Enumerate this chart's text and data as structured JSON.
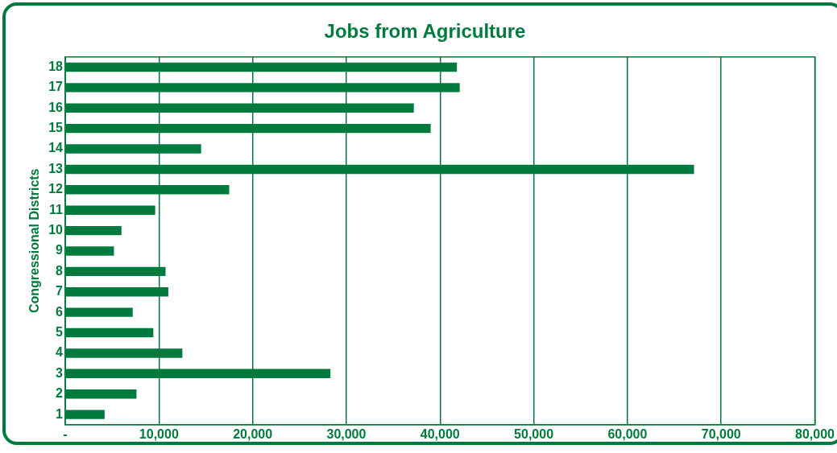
{
  "chart_data": {
    "type": "bar",
    "orientation": "horizontal",
    "title": "Jobs from Agriculture",
    "ylabel": "Congressional Districts",
    "categories": [
      "18",
      "17",
      "16",
      "15",
      "14",
      "13",
      "12",
      "11",
      "10",
      "9",
      "8",
      "7",
      "6",
      "5",
      "4",
      "3",
      "2",
      "1"
    ],
    "values": [
      41800,
      42100,
      37200,
      39000,
      14500,
      67100,
      17500,
      9600,
      6000,
      5200,
      10700,
      11000,
      7200,
      9400,
      12500,
      28300,
      7600,
      4200
    ],
    "color": "#007a3d",
    "xlim": [
      0,
      80000
    ],
    "xticks": [
      {
        "value": 0,
        "label": "-"
      },
      {
        "value": 10000,
        "label": "10,000"
      },
      {
        "value": 20000,
        "label": "20,000"
      },
      {
        "value": 30000,
        "label": "30,000"
      },
      {
        "value": 40000,
        "label": "40,000"
      },
      {
        "value": 50000,
        "label": "50,000"
      },
      {
        "value": 60000,
        "label": "60,000"
      },
      {
        "value": 70000,
        "label": "70,000"
      },
      {
        "value": 80000,
        "label": "80,000"
      }
    ],
    "grid": "x",
    "legend": false
  }
}
